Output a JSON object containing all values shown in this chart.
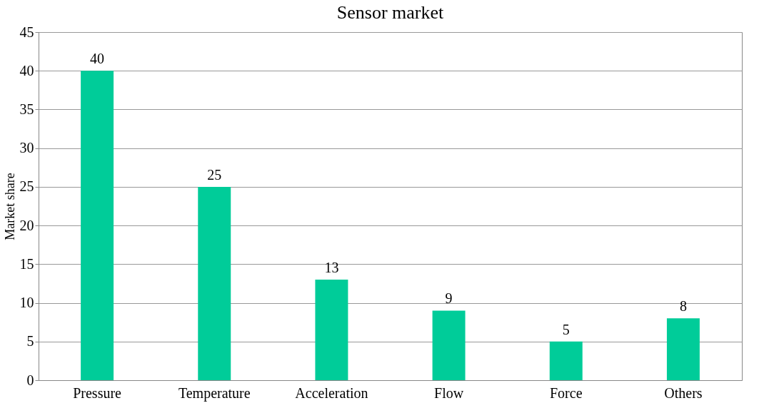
{
  "chart_data": {
    "type": "bar",
    "title": "Sensor market",
    "ylabel": "Market share",
    "categories": [
      "Pressure",
      "Temperature",
      "Acceleration",
      "Flow",
      "Force",
      "Others"
    ],
    "values": [
      40,
      25,
      13,
      9,
      5,
      8
    ],
    "color": "#00cc99",
    "ylim": [
      0,
      45
    ],
    "yticks": [
      0,
      5,
      10,
      15,
      20,
      25,
      30,
      35,
      40,
      45
    ],
    "grid": "y",
    "data_labels": true
  }
}
